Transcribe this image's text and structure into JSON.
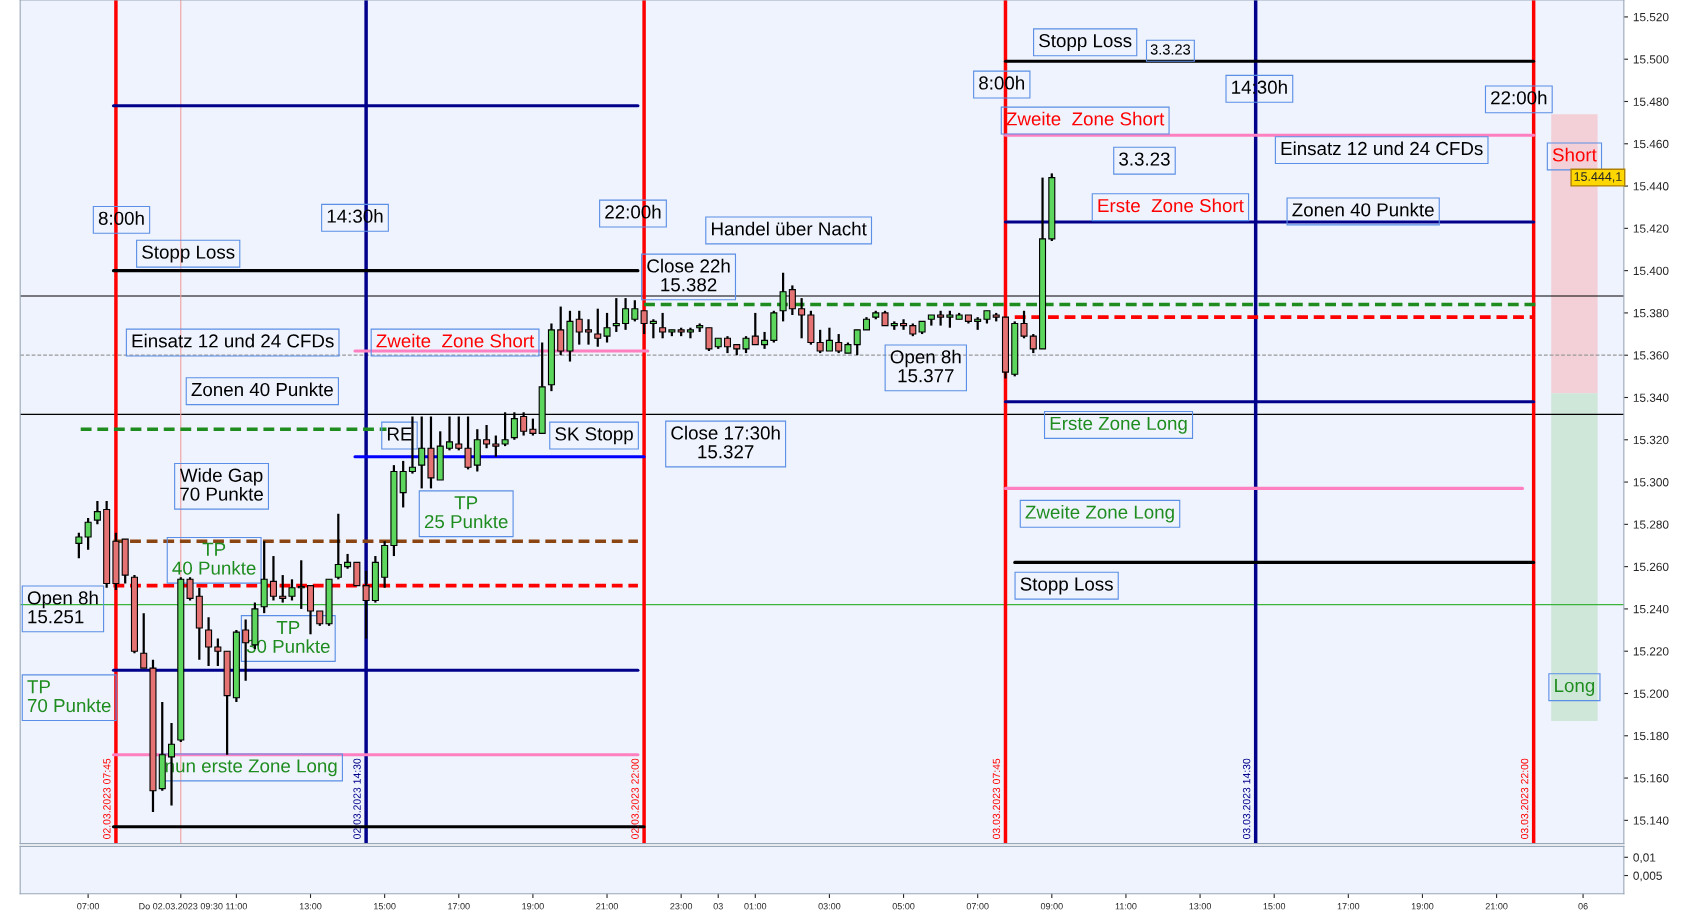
{
  "chart_data": [
    {
      "type": "candlestick",
      "x": [
        "2023-03-02T06:45",
        "2023-03-02T07:00",
        "2023-03-02T07:15",
        "2023-03-02T07:30",
        "2023-03-02T07:45",
        "2023-03-02T08:00",
        "2023-03-02T08:15",
        "2023-03-02T08:30",
        "2023-03-02T08:45",
        "2023-03-02T09:00",
        "2023-03-02T09:15",
        "2023-03-02T09:30",
        "2023-03-02T09:45",
        "2023-03-02T10:00",
        "2023-03-02T10:15",
        "2023-03-02T10:30",
        "2023-03-02T10:45",
        "2023-03-02T11:00",
        "2023-03-02T11:15",
        "2023-03-02T11:30",
        "2023-03-02T11:45",
        "2023-03-02T12:00",
        "2023-03-02T12:15",
        "2023-03-02T12:30",
        "2023-03-02T12:45",
        "2023-03-02T13:00",
        "2023-03-02T13:15",
        "2023-03-02T13:30",
        "2023-03-02T13:45",
        "2023-03-02T14:00",
        "2023-03-02T14:15",
        "2023-03-02T14:30",
        "2023-03-02T14:45",
        "2023-03-02T15:00",
        "2023-03-02T15:15",
        "2023-03-02T15:30",
        "2023-03-02T15:45",
        "2023-03-02T16:00",
        "2023-03-02T16:15",
        "2023-03-02T16:30",
        "2023-03-02T16:45",
        "2023-03-02T17:00",
        "2023-03-02T17:15",
        "2023-03-02T17:30",
        "2023-03-02T17:45",
        "2023-03-02T18:00",
        "2023-03-02T18:15",
        "2023-03-02T18:30",
        "2023-03-02T18:45",
        "2023-03-02T19:00",
        "2023-03-02T19:15",
        "2023-03-02T19:30",
        "2023-03-02T19:45",
        "2023-03-02T20:00",
        "2023-03-02T20:15",
        "2023-03-02T20:30",
        "2023-03-02T20:45",
        "2023-03-02T21:00",
        "2023-03-02T21:15",
        "2023-03-02T21:30",
        "2023-03-02T21:45",
        "2023-03-02T22:00",
        "2023-03-02T22:15",
        "2023-03-02T22:30",
        "2023-03-02T22:45",
        "2023-03-02T23:00",
        "2023-03-02T23:15",
        "2023-03-02T23:30",
        "2023-03-02T23:45",
        "2023-03-03T00:00",
        "2023-03-03T00:15",
        "2023-03-03T00:30",
        "2023-03-03T00:45",
        "2023-03-03T01:00",
        "2023-03-03T01:15",
        "2023-03-03T01:30",
        "2023-03-03T01:45",
        "2023-03-03T02:00",
        "2023-03-03T02:15",
        "2023-03-03T02:30",
        "2023-03-03T02:45",
        "2023-03-03T03:00",
        "2023-03-03T03:15",
        "2023-03-03T03:30",
        "2023-03-03T03:45",
        "2023-03-03T04:00",
        "2023-03-03T04:15",
        "2023-03-03T04:30",
        "2023-03-03T04:45",
        "2023-03-03T05:00",
        "2023-03-03T05:15",
        "2023-03-03T05:30",
        "2023-03-03T05:45",
        "2023-03-03T06:00",
        "2023-03-03T06:15",
        "2023-03-03T06:30",
        "2023-03-03T06:45",
        "2023-03-03T07:00",
        "2023-03-03T07:15",
        "2023-03-03T07:30",
        "2023-03-03T07:45",
        "2023-03-03T08:00",
        "2023-03-03T08:15",
        "2023-03-03T08:30",
        "2023-03-03T08:45",
        "2023-03-03T09:00"
      ],
      "ohlc": [
        [
          15271,
          15276,
          15264,
          15274
        ],
        [
          15274,
          15283,
          15268,
          15281
        ],
        [
          15282,
          15291,
          15280,
          15286
        ],
        [
          15287,
          15291,
          15250,
          15252
        ],
        [
          15272,
          15276,
          15249,
          15252
        ],
        [
          15273,
          15273,
          15252,
          15256
        ],
        [
          15255,
          15256,
          15219,
          15220
        ],
        [
          15219,
          15238,
          15212,
          15212
        ],
        [
          15212,
          15216,
          15144,
          15154
        ],
        [
          15155,
          15196,
          15154,
          15171
        ],
        [
          15170,
          15186,
          15147,
          15176
        ],
        [
          15178,
          15255,
          15177,
          15254
        ],
        [
          15254,
          15255,
          15244,
          15245
        ],
        [
          15246,
          15250,
          15216,
          15231
        ],
        [
          15230,
          15236,
          15213,
          15222
        ],
        [
          15222,
          15226,
          15213,
          15220
        ],
        [
          15220,
          15220,
          15171,
          15199
        ],
        [
          15198,
          15230,
          15196,
          15229
        ],
        [
          15230,
          15235,
          15206,
          15224
        ],
        [
          15223,
          15243,
          15221,
          15240
        ],
        [
          15241,
          15272,
          15238,
          15254
        ],
        [
          15253,
          15265,
          15244,
          15246
        ],
        [
          15246,
          15256,
          15243,
          15245
        ],
        [
          15246,
          15254,
          15244,
          15250
        ],
        [
          15250,
          15263,
          15240,
          15250
        ],
        [
          15251,
          15251,
          15228,
          15239
        ],
        [
          15239,
          15239,
          15232,
          15233
        ],
        [
          15233,
          15254,
          15232,
          15254
        ],
        [
          15255,
          15285,
          15254,
          15261
        ],
        [
          15260,
          15266,
          15259,
          15262
        ],
        [
          15262,
          15262,
          15251,
          15251
        ],
        [
          15251,
          15258,
          15226,
          15244
        ],
        [
          15244,
          15265,
          15243,
          15262
        ],
        [
          15255,
          15272,
          15250,
          15270
        ],
        [
          15270,
          15308,
          15265,
          15305
        ],
        [
          15295,
          15310,
          15288,
          15305
        ],
        [
          15305,
          15331,
          15304,
          15307
        ],
        [
          15308,
          15331,
          15297,
          15316
        ],
        [
          15316,
          15331,
          15297,
          15302
        ],
        [
          15301,
          15324,
          15301,
          15317
        ],
        [
          15316,
          15331,
          15315,
          15319
        ],
        [
          15318,
          15331,
          15315,
          15316
        ],
        [
          15316,
          15331,
          15306,
          15307
        ],
        [
          15308,
          15325,
          15305,
          15320
        ],
        [
          15320,
          15327,
          15316,
          15318
        ],
        [
          15318,
          15322,
          15312,
          15317
        ],
        [
          15318,
          15333,
          15317,
          15320
        ],
        [
          15321,
          15333,
          15320,
          15330
        ],
        [
          15331,
          15333,
          15322,
          15324
        ],
        [
          15325,
          15330,
          15322,
          15323
        ],
        [
          15323,
          15366,
          15323,
          15345
        ],
        [
          15346,
          15375,
          15343,
          15372
        ],
        [
          15372,
          15383,
          15360,
          15362
        ],
        [
          15362,
          15381,
          15357,
          15376
        ],
        [
          15377,
          15381,
          15365,
          15371
        ],
        [
          15372,
          15377,
          15365,
          15371
        ],
        [
          15370,
          15382,
          15364,
          15368
        ],
        [
          15369,
          15380,
          15366,
          15373
        ],
        [
          15374,
          15387,
          15371,
          15375
        ],
        [
          15375,
          15387,
          15372,
          15382
        ],
        [
          15377,
          15386,
          15376,
          15382
        ],
        [
          15381,
          15381,
          15370,
          15375
        ],
        [
          15375,
          15377,
          15368,
          15376
        ],
        [
          15373,
          15380,
          15368,
          15371
        ],
        [
          15371,
          15372,
          15369,
          15372
        ],
        [
          15372,
          15373,
          15369,
          15371
        ],
        [
          15371,
          15373,
          15368,
          15372
        ],
        [
          15373,
          15375,
          15371,
          15374
        ],
        [
          15373,
          15373,
          15362,
          15363
        ],
        [
          15364,
          15368,
          15363,
          15368
        ],
        [
          15368,
          15369,
          15361,
          15364
        ],
        [
          15365,
          15365,
          15360,
          15363
        ],
        [
          15363,
          15369,
          15361,
          15368
        ],
        [
          15369,
          15380,
          15365,
          15365
        ],
        [
          15365,
          15371,
          15363,
          15367
        ],
        [
          15367,
          15381,
          15366,
          15380
        ],
        [
          15381,
          15399,
          15376,
          15390
        ],
        [
          15391,
          15393,
          15379,
          15382
        ],
        [
          15382,
          15387,
          15368,
          15379
        ],
        [
          15379,
          15381,
          15365,
          15366
        ],
        [
          15366,
          15372,
          15361,
          15362
        ],
        [
          15362,
          15373,
          15362,
          15367
        ],
        [
          15366,
          15370,
          15361,
          15362
        ],
        [
          15361,
          15366,
          15361,
          15365
        ],
        [
          15365,
          15372,
          15360,
          15372
        ],
        [
          15372,
          15378,
          15372,
          15377
        ],
        [
          15378,
          15381,
          15377,
          15380
        ],
        [
          15380,
          15381,
          15374,
          15374
        ],
        [
          15374,
          15376,
          15372,
          15375
        ],
        [
          15375,
          15377,
          15372,
          15374
        ],
        [
          15374,
          15375,
          15369,
          15370
        ],
        [
          15371,
          15376,
          15370,
          15376
        ],
        [
          15377,
          15379,
          15374,
          15379
        ],
        [
          15379,
          15381,
          15374,
          15378
        ],
        [
          15378,
          15381,
          15373,
          15379
        ],
        [
          15377,
          15380,
          15377,
          15379
        ],
        [
          15379,
          15379,
          15375,
          15376
        ],
        [
          15376,
          15378,
          15372,
          15377
        ],
        [
          15377,
          15381,
          15375,
          15381
        ],
        [
          15379,
          15380,
          15376,
          15378
        ],
        [
          15378,
          15378,
          15349,
          15352
        ],
        [
          15351,
          15376,
          15350,
          15375
        ],
        [
          15375,
          15381,
          15368,
          15369
        ],
        [
          15369,
          15370,
          15361,
          15363
        ],
        [
          15363,
          15444,
          15363,
          15415
        ],
        [
          15415,
          15446,
          15414,
          15444
        ]
      ],
      "series": [
        {
          "type": "line",
          "x": [
            "2023-03-02T07:41",
            "2023-03-02T21:50"
          ],
          "values": [
            15400,
            15400
          ],
          "color": "#000000",
          "line_style": "solid"
        },
        {
          "type": "line",
          "x": [
            "2023-03-02T07:41",
            "2023-03-02T21:50"
          ],
          "values": [
            15478,
            15478
          ],
          "color": "#00008b",
          "line_style": "solid"
        },
        {
          "type": "line",
          "x": [
            "2023-03-02T07:41",
            "2023-03-02T21:50"
          ],
          "values": [
            15211,
            15211
          ],
          "color": "#00008b",
          "line_style": "solid"
        },
        {
          "type": "line",
          "x": [
            "2023-03-02T07:41",
            "2023-03-02T22:00"
          ],
          "values": [
            15137,
            15137
          ],
          "color": "#000000",
          "line_style": "solid"
        },
        {
          "type": "line",
          "x": [
            "2023-03-02T06:48",
            "2023-03-02T15:03"
          ],
          "values": [
            15325,
            15325
          ],
          "color": "#1e8c1e",
          "line_style": "dashed"
        },
        {
          "type": "line",
          "x": [
            "2023-03-02T07:41",
            "2023-03-02T21:50"
          ],
          "values": [
            15272,
            15272
          ],
          "color": "#8b4513",
          "line_style": "dashed"
        },
        {
          "type": "line",
          "x": [
            "2023-03-02T07:41",
            "2023-03-02T21:50"
          ],
          "values": [
            15251,
            15251
          ],
          "color": "#ff0000",
          "line_style": "dashed"
        },
        {
          "type": "line",
          "x": [
            "2023-03-02T07:41",
            "2023-03-02T21:50"
          ],
          "values": [
            15171,
            15171
          ],
          "color": "#ff80c0",
          "line_style": "solid"
        },
        {
          "type": "line",
          "x": [
            "2023-03-02T14:12",
            "2023-03-02T22:06"
          ],
          "values": [
            15362,
            15362
          ],
          "color": "#ff80c0",
          "line_style": "solid"
        },
        {
          "type": "line",
          "x": [
            "2023-03-02T14:12",
            "2023-03-02T22:00"
          ],
          "values": [
            15312,
            15312
          ],
          "color": "#0000ff",
          "line_style": "solid"
        },
        {
          "type": "line",
          "x": [
            "2023-03-03T07:45",
            "2023-03-03T22:00"
          ],
          "values": [
            15499,
            15499
          ],
          "color": "#000000",
          "line_style": "solid"
        },
        {
          "type": "line",
          "x": [
            "2023-03-03T07:45",
            "2023-03-03T22:00"
          ],
          "values": [
            15464,
            15464
          ],
          "color": "#ff80c0",
          "line_style": "solid"
        },
        {
          "type": "line",
          "x": [
            "2023-03-03T07:45",
            "2023-03-03T22:00"
          ],
          "values": [
            15423,
            15423
          ],
          "color": "#00008b",
          "line_style": "solid"
        },
        {
          "type": "line",
          "x": [
            "2023-03-02T22:00",
            "2023-03-03T22:06"
          ],
          "values": [
            15384,
            15384
          ],
          "color": "#1e8c1e",
          "line_style": "dashed"
        },
        {
          "type": "line",
          "x": [
            "2023-03-03T08:00",
            "2023-03-03T22:00"
          ],
          "values": [
            15378,
            15378
          ],
          "color": "#ff0000",
          "line_style": "dashed"
        },
        {
          "type": "line",
          "x": [
            "2023-03-03T07:45",
            "2023-03-03T22:00"
          ],
          "values": [
            15338,
            15338
          ],
          "color": "#00008b",
          "line_style": "solid"
        },
        {
          "type": "line",
          "x": [
            "2023-03-03T07:45",
            "2023-03-03T21:42"
          ],
          "values": [
            15297,
            15297
          ],
          "color": "#ff80c0",
          "line_style": "solid"
        },
        {
          "type": "line",
          "x": [
            "2023-03-03T08:00",
            "2023-03-03T22:00"
          ],
          "values": [
            15262,
            15262
          ],
          "color": "#000000",
          "line_style": "solid"
        },
        {
          "type": "bar",
          "x": [
            "2023-03-03T23:06"
          ],
          "base": [
            15342
          ],
          "values": [
            132
          ],
          "color": "#f3c9d0"
        },
        {
          "type": "bar",
          "x": [
            "2023-03-03T23:06"
          ],
          "base": [
            15187
          ],
          "values": [
            155
          ],
          "color": "#c9e4d2"
        }
      ],
      "ref_lines": [
        {
          "axis": "y",
          "value": 15388,
          "color": "#000000",
          "line_style": "solid"
        },
        {
          "axis": "y",
          "value": 15332,
          "color": "#000000",
          "line_style": "solid"
        },
        {
          "axis": "y",
          "value": 15360,
          "color": "#999999",
          "line_style": "dashed"
        },
        {
          "axis": "y",
          "value": 15242,
          "color": "#3cb43c",
          "line_style": "solid"
        },
        {
          "axis": "x",
          "value": "2023-03-02T09:30",
          "color": "#f0a0a0",
          "line_style": "solid"
        },
        {
          "axis": "x",
          "value": "2023-03-02T07:45",
          "label": "02.03.2023 07:45",
          "color": "#ff0000",
          "line_style": "solid"
        },
        {
          "axis": "x",
          "value": "2023-03-02T14:30",
          "label": "02.03.2023 14:30",
          "color": "#00008b",
          "line_style": "solid"
        },
        {
          "axis": "x",
          "value": "2023-03-02T22:00",
          "label": "02.03.2023 22:00",
          "color": "#ff0000",
          "line_style": "solid"
        },
        {
          "axis": "x",
          "value": "2023-03-03T07:45",
          "label": "03.03.2023 07:45",
          "color": "#ff0000",
          "line_style": "solid"
        },
        {
          "axis": "x",
          "value": "2023-03-03T14:30",
          "label": "03.03.2023 14:30",
          "color": "#00008b",
          "line_style": "solid"
        },
        {
          "axis": "x",
          "value": "2023-03-03T22:00",
          "label": "03.03.2023 22:00",
          "color": "#ff0000",
          "line_style": "solid"
        }
      ],
      "annotations": [
        "8:00h",
        "14:30h",
        "22:00h",
        "Stopp Loss",
        "Handel über Nacht",
        "Close 22h\n15.382",
        "Einsatz 12 und 24 CFDs",
        "Zweite  Zone Short",
        "Zonen 40 Punkte",
        "Wide Gap\n70 Punkte",
        "RE",
        "SK Stopp",
        "Close 17:30h\n15.327",
        "TP\n25 Punkte",
        "TP\n40 Punkte",
        "Open 8h\n15.251",
        "TP\n30 Punkte",
        "TP\n70 Punkte",
        "nun erste Zone Long",
        "Open 8h\n15.377",
        "8:00h",
        "Stopp Loss",
        "3.3.23",
        "14:30h",
        "22:00h",
        "Zweite  Zone Short",
        "Einsatz 12 und 24 CFDs",
        "3.3.23",
        "Erste  Zone Short",
        "Zonen 40 Punkte",
        "Erste Zone Long",
        "Zweite Zone Long",
        "Stopp Loss",
        "Short",
        "Long",
        "15.444,1"
      ],
      "xlim": [
        "2023-03-02T05:10",
        "2023-03-04T00:26"
      ],
      "ylim": [
        15129,
        15528
      ],
      "yticks": [
        {
          "value": 15140,
          "label": "15.140"
        },
        {
          "value": 15160,
          "label": "15.160"
        },
        {
          "value": 15180,
          "label": "15.180"
        },
        {
          "value": 15200,
          "label": "15.200"
        },
        {
          "value": 15220,
          "label": "15.220"
        },
        {
          "value": 15240,
          "label": "15.240"
        },
        {
          "value": 15260,
          "label": "15.260"
        },
        {
          "value": 15280,
          "label": "15.280"
        },
        {
          "value": 15300,
          "label": "15.300"
        },
        {
          "value": 15320,
          "label": "15.320"
        },
        {
          "value": 15340,
          "label": "15.340"
        },
        {
          "value": 15360,
          "label": "15.360"
        },
        {
          "value": 15380,
          "label": "15.380"
        },
        {
          "value": 15400,
          "label": "15.400"
        },
        {
          "value": 15420,
          "label": "15.420"
        },
        {
          "value": 15440,
          "label": "15.440"
        },
        {
          "value": 15460,
          "label": "15.460"
        },
        {
          "value": 15480,
          "label": "15.480"
        },
        {
          "value": 15500,
          "label": "15.500"
        },
        {
          "value": 15520,
          "label": "15.520"
        }
      ],
      "tick_labels": "y"
    },
    {
      "type": "line",
      "xlim": [
        "2023-03-02T05:10",
        "2023-03-04T00:26"
      ],
      "ylim": [
        0,
        0.013
      ],
      "xticks": [
        {
          "value": "2023-03-02T07:00",
          "label": "07:00"
        },
        {
          "value": "2023-03-02T09:30",
          "label": "Do 02.03.2023 09:30"
        },
        {
          "value": "2023-03-02T11:00",
          "label": "11:00"
        },
        {
          "value": "2023-03-02T13:00",
          "label": "13:00"
        },
        {
          "value": "2023-03-02T15:00",
          "label": "15:00"
        },
        {
          "value": "2023-03-02T17:00",
          "label": "17:00"
        },
        {
          "value": "2023-03-02T19:00",
          "label": "19:00"
        },
        {
          "value": "2023-03-02T21:00",
          "label": "21:00"
        },
        {
          "value": "2023-03-02T23:00",
          "label": "23:00"
        },
        {
          "value": "2023-03-03",
          "label": "03"
        },
        {
          "value": "2023-03-03T01:00",
          "label": "01:00"
        },
        {
          "value": "2023-03-03T03:00",
          "label": "03:00"
        },
        {
          "value": "2023-03-03T05:00",
          "label": "05:00"
        },
        {
          "value": "2023-03-03T07:00",
          "label": "07:00"
        },
        {
          "value": "2023-03-03T09:00",
          "label": "09:00"
        },
        {
          "value": "2023-03-03T11:00",
          "label": "11:00"
        },
        {
          "value": "2023-03-03T13:00",
          "label": "13:00"
        },
        {
          "value": "2023-03-03T15:00",
          "label": "15:00"
        },
        {
          "value": "2023-03-03T17:00",
          "label": "17:00"
        },
        {
          "value": "2023-03-03T19:00",
          "label": "19:00"
        },
        {
          "value": "2023-03-03T21:00",
          "label": "21:00"
        },
        {
          "value": "2023-03-03T23:20",
          "label": "06"
        }
      ],
      "yticks": [
        {
          "value": 0.01,
          "label": "0,01"
        },
        {
          "value": 0.005,
          "label": "0,005"
        }
      ]
    }
  ]
}
